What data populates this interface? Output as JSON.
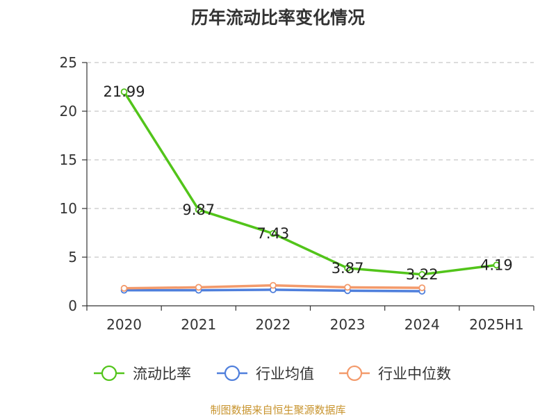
{
  "chart_data": {
    "type": "line",
    "title": "历年流动比率变化情况",
    "source": "制图数据来自恒生聚源数据库",
    "categories": [
      "2020",
      "2021",
      "2022",
      "2023",
      "2024",
      "2025H1"
    ],
    "ylim": [
      0,
      25
    ],
    "yticks": [
      0,
      5,
      10,
      15,
      20,
      25
    ],
    "grid": true,
    "legend_position": "bottom",
    "series": [
      {
        "name": "流动比率",
        "color": "#52c41a",
        "values": [
          21.99,
          9.87,
          7.43,
          3.87,
          3.22,
          4.19
        ],
        "labels": [
          "21.99",
          "9.87",
          "7.43",
          "3.87",
          "3.22",
          "4.19"
        ]
      },
      {
        "name": "行业均值",
        "color": "#4f7fdc",
        "values": [
          1.6,
          1.6,
          1.65,
          1.55,
          1.5,
          null
        ]
      },
      {
        "name": "行业中位数",
        "color": "#f39a6b",
        "values": [
          1.8,
          1.9,
          2.1,
          1.9,
          1.85,
          null
        ]
      }
    ]
  }
}
